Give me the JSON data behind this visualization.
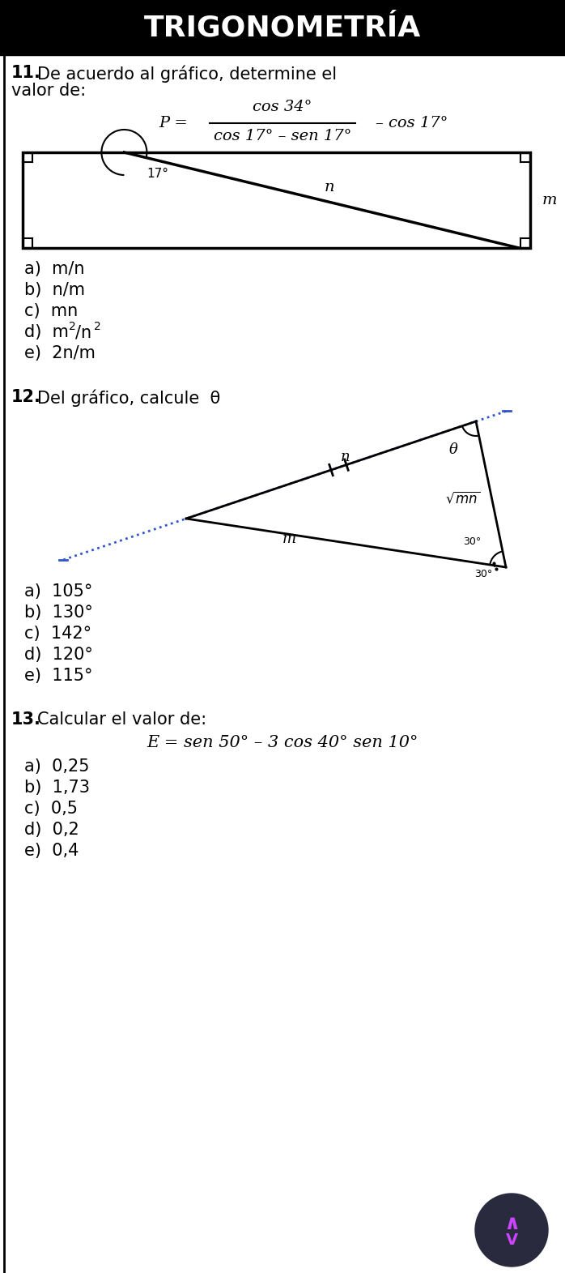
{
  "title": "TRIGONOMETRÍA",
  "title_bg": "#000000",
  "title_color": "#ffffff",
  "title_fontsize": 26,
  "bg_color": "#ffffff",
  "body_fontsize": 15,
  "option_fontsize": 15,
  "q11_options": [
    "a)  m/n",
    "b)  n/m",
    "c)  mn",
    "d)  m²/n²",
    "e)  2n/m"
  ],
  "q12_options": [
    "a)  105°",
    "b)  130°",
    "c)  142°",
    "d)  120°",
    "e)  115°"
  ],
  "q13_options": [
    "a)  0,25",
    "b)  1,73",
    "c)  0,5",
    "d)  0,2",
    "e)  0,4"
  ],
  "logo_bg": "#2a2a3e",
  "logo_arrow_color": "#cc44ff"
}
